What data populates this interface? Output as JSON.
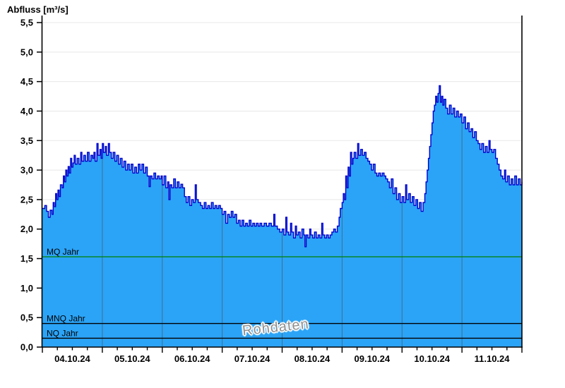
{
  "title": "Abfluss [m³/s]",
  "watermark": "Rohdaten",
  "colors": {
    "area_fill": "#2BA4F7",
    "series_line": "#0000CD",
    "h_grid": "#E8E8E8",
    "day_grid": "#3E6F8E",
    "axis": "#000000",
    "mq_line": "#008000",
    "ref_line": "#000000",
    "label_text": "#000000"
  },
  "chart_data": {
    "type": "area",
    "title": "Abfluss [m³/s]",
    "xlabel": "",
    "ylabel": "Abfluss [m³/s]",
    "x_unit": "days since 04.10.24 00:00",
    "xlim": [
      0,
      8
    ],
    "ylim": [
      0,
      5.5
    ],
    "y_tick_step": 0.5,
    "y_tick_labels": [
      "0,0",
      "0,5",
      "1,0",
      "1,5",
      "2,0",
      "2,5",
      "3,0",
      "3,5",
      "4,0",
      "4,5",
      "5,0",
      "5,5"
    ],
    "x_day_labels": [
      "04.10.24",
      "05.10.24",
      "06.10.24",
      "07.10.24",
      "08.10.24",
      "09.10.24",
      "10.10.24",
      "11.10.24"
    ],
    "x_minor_tick_step": 0.25,
    "grid": "horizontal-light, vertical-day-lines-inside-fill",
    "legend": "none",
    "reference_lines": [
      {
        "label": "MQ Jahr",
        "value": 1.53,
        "color": "#008000"
      },
      {
        "label": "MNQ Jahr",
        "value": 0.4,
        "color": "#000000"
      },
      {
        "label": "NQ Jahr",
        "value": 0.15,
        "color": "#000000"
      }
    ],
    "series": [
      {
        "name": "Rohdaten",
        "interpolation": "step-after",
        "points": [
          [
            0,
            2.35
          ],
          [
            0.04,
            2.4
          ],
          [
            0.07,
            2.3
          ],
          [
            0.1,
            2.2
          ],
          [
            0.13,
            2.32
          ],
          [
            0.16,
            2.25
          ],
          [
            0.18,
            2.45
          ],
          [
            0.2,
            2.38
          ],
          [
            0.22,
            2.6
          ],
          [
            0.24,
            2.5
          ],
          [
            0.26,
            2.66
          ],
          [
            0.28,
            2.55
          ],
          [
            0.3,
            2.75
          ],
          [
            0.33,
            2.7
          ],
          [
            0.35,
            2.9
          ],
          [
            0.37,
            2.8
          ],
          [
            0.39,
            3.0
          ],
          [
            0.41,
            2.9
          ],
          [
            0.43,
            3.06
          ],
          [
            0.45,
            2.95
          ],
          [
            0.47,
            3.2
          ],
          [
            0.49,
            3.05
          ],
          [
            0.51,
            3.12
          ],
          [
            0.53,
            3.25
          ],
          [
            0.55,
            3.1
          ],
          [
            0.58,
            3.2
          ],
          [
            0.61,
            3.1
          ],
          [
            0.64,
            3.3
          ],
          [
            0.66,
            3.15
          ],
          [
            0.69,
            3.25
          ],
          [
            0.72,
            3.15
          ],
          [
            0.75,
            3.3
          ],
          [
            0.78,
            3.15
          ],
          [
            0.81,
            3.25
          ],
          [
            0.84,
            3.2
          ],
          [
            0.86,
            3.3
          ],
          [
            0.88,
            3.15
          ],
          [
            0.91,
            3.45
          ],
          [
            0.93,
            3.25
          ],
          [
            0.96,
            3.35
          ],
          [
            0.98,
            3.2
          ],
          [
            1.0,
            3.45
          ],
          [
            1.02,
            3.3
          ],
          [
            1.05,
            3.4
          ],
          [
            1.07,
            3.25
          ],
          [
            1.1,
            3.45
          ],
          [
            1.12,
            3.3
          ],
          [
            1.15,
            3.2
          ],
          [
            1.18,
            3.3
          ],
          [
            1.21,
            3.15
          ],
          [
            1.24,
            3.25
          ],
          [
            1.27,
            3.1
          ],
          [
            1.3,
            3.2
          ],
          [
            1.33,
            3.05
          ],
          [
            1.36,
            3.15
          ],
          [
            1.39,
            3.0
          ],
          [
            1.42,
            3.1
          ],
          [
            1.45,
            3.0
          ],
          [
            1.48,
            3.1
          ],
          [
            1.51,
            2.95
          ],
          [
            1.54,
            3.05
          ],
          [
            1.57,
            2.95
          ],
          [
            1.6,
            3.1
          ],
          [
            1.63,
            3.0
          ],
          [
            1.66,
            3.1
          ],
          [
            1.69,
            2.95
          ],
          [
            1.72,
            3.05
          ],
          [
            1.75,
            2.9
          ],
          [
            1.78,
            2.72
          ],
          [
            1.8,
            2.9
          ],
          [
            1.83,
            2.85
          ],
          [
            1.86,
            2.95
          ],
          [
            1.89,
            2.85
          ],
          [
            1.92,
            2.9
          ],
          [
            1.95,
            2.85
          ],
          [
            1.98,
            2.9
          ],
          [
            2.0,
            2.75
          ],
          [
            2.03,
            2.9
          ],
          [
            2.06,
            2.7
          ],
          [
            2.09,
            2.8
          ],
          [
            2.11,
            2.5
          ],
          [
            2.13,
            2.75
          ],
          [
            2.16,
            2.7
          ],
          [
            2.19,
            2.85
          ],
          [
            2.22,
            2.7
          ],
          [
            2.25,
            2.8
          ],
          [
            2.28,
            2.7
          ],
          [
            2.31,
            2.76
          ],
          [
            2.34,
            2.7
          ],
          [
            2.37,
            2.55
          ],
          [
            2.4,
            2.45
          ],
          [
            2.43,
            2.55
          ],
          [
            2.46,
            2.4
          ],
          [
            2.49,
            2.5
          ],
          [
            2.52,
            2.45
          ],
          [
            2.55,
            2.75
          ],
          [
            2.57,
            2.5
          ],
          [
            2.6,
            2.45
          ],
          [
            2.64,
            2.4
          ],
          [
            2.67,
            2.35
          ],
          [
            2.7,
            2.45
          ],
          [
            2.73,
            2.35
          ],
          [
            2.76,
            2.4
          ],
          [
            2.79,
            2.35
          ],
          [
            2.82,
            2.45
          ],
          [
            2.85,
            2.35
          ],
          [
            2.88,
            2.4
          ],
          [
            2.91,
            2.35
          ],
          [
            2.94,
            2.4
          ],
          [
            2.97,
            2.35
          ],
          [
            3.0,
            2.25
          ],
          [
            3.03,
            2.3
          ],
          [
            3.06,
            2.1
          ],
          [
            3.09,
            2.25
          ],
          [
            3.12,
            2.2
          ],
          [
            3.15,
            2.3
          ],
          [
            3.18,
            2.2
          ],
          [
            3.21,
            2.25
          ],
          [
            3.24,
            2.1
          ],
          [
            3.27,
            2.15
          ],
          [
            3.3,
            2.05
          ],
          [
            3.33,
            2.15
          ],
          [
            3.36,
            2.05
          ],
          [
            3.39,
            2.1
          ],
          [
            3.42,
            2.05
          ],
          [
            3.45,
            2.15
          ],
          [
            3.48,
            2.05
          ],
          [
            3.51,
            2.1
          ],
          [
            3.54,
            2.05
          ],
          [
            3.57,
            2.1
          ],
          [
            3.6,
            2.05
          ],
          [
            3.63,
            2.1
          ],
          [
            3.66,
            2.05
          ],
          [
            3.7,
            2.1
          ],
          [
            3.74,
            2.05
          ],
          [
            3.78,
            2.1
          ],
          [
            3.82,
            2.05
          ],
          [
            3.86,
            2.25
          ],
          [
            3.88,
            2.05
          ],
          [
            3.92,
            2.0
          ],
          [
            3.96,
            1.95
          ],
          [
            4.0,
            2.0
          ],
          [
            4.03,
            1.9
          ],
          [
            4.06,
            2.2
          ],
          [
            4.08,
            1.95
          ],
          [
            4.11,
            1.9
          ],
          [
            4.14,
            2.1
          ],
          [
            4.16,
            1.95
          ],
          [
            4.19,
            1.85
          ],
          [
            4.22,
            2.05
          ],
          [
            4.24,
            1.9
          ],
          [
            4.27,
            1.95
          ],
          [
            4.3,
            1.85
          ],
          [
            4.33,
            2.0
          ],
          [
            4.36,
            1.9
          ],
          [
            4.38,
            1.7
          ],
          [
            4.4,
            1.9
          ],
          [
            4.43,
            1.85
          ],
          [
            4.46,
            2.0
          ],
          [
            4.48,
            1.9
          ],
          [
            4.51,
            1.85
          ],
          [
            4.54,
            1.95
          ],
          [
            4.57,
            1.85
          ],
          [
            4.6,
            1.9
          ],
          [
            4.63,
            1.85
          ],
          [
            4.66,
            2.1
          ],
          [
            4.68,
            1.9
          ],
          [
            4.71,
            1.85
          ],
          [
            4.74,
            1.9
          ],
          [
            4.77,
            1.85
          ],
          [
            4.8,
            1.9
          ],
          [
            4.83,
            1.95
          ],
          [
            4.86,
            2.0
          ],
          [
            4.89,
            1.95
          ],
          [
            4.92,
            2.05
          ],
          [
            4.95,
            2.2
          ],
          [
            4.97,
            2.35
          ],
          [
            5.0,
            2.45
          ],
          [
            5.02,
            2.6
          ],
          [
            5.04,
            2.5
          ],
          [
            5.06,
            2.9
          ],
          [
            5.08,
            2.7
          ],
          [
            5.1,
            3.05
          ],
          [
            5.12,
            2.9
          ],
          [
            5.14,
            3.3
          ],
          [
            5.16,
            3.1
          ],
          [
            5.18,
            3.2
          ],
          [
            5.2,
            3.3
          ],
          [
            5.23,
            3.2
          ],
          [
            5.26,
            3.45
          ],
          [
            5.28,
            3.25
          ],
          [
            5.31,
            3.35
          ],
          [
            5.34,
            3.25
          ],
          [
            5.37,
            3.3
          ],
          [
            5.4,
            3.2
          ],
          [
            5.43,
            3.15
          ],
          [
            5.46,
            3.1
          ],
          [
            5.49,
            3.0
          ],
          [
            5.52,
            3.1
          ],
          [
            5.55,
            2.95
          ],
          [
            5.58,
            2.9
          ],
          [
            5.61,
            2.95
          ],
          [
            5.64,
            2.9
          ],
          [
            5.67,
            2.95
          ],
          [
            5.7,
            2.9
          ],
          [
            5.73,
            2.85
          ],
          [
            5.76,
            2.8
          ],
          [
            5.79,
            2.7
          ],
          [
            5.82,
            2.85
          ],
          [
            5.85,
            2.6
          ],
          [
            5.88,
            2.7
          ],
          [
            5.91,
            2.5
          ],
          [
            5.94,
            2.6
          ],
          [
            5.97,
            2.45
          ],
          [
            6.0,
            2.55
          ],
          [
            6.03,
            2.45
          ],
          [
            6.06,
            2.75
          ],
          [
            6.08,
            2.5
          ],
          [
            6.11,
            2.6
          ],
          [
            6.14,
            2.45
          ],
          [
            6.17,
            2.55
          ],
          [
            6.2,
            2.4
          ],
          [
            6.23,
            2.5
          ],
          [
            6.26,
            2.35
          ],
          [
            6.29,
            2.45
          ],
          [
            6.32,
            2.3
          ],
          [
            6.35,
            2.45
          ],
          [
            6.38,
            2.6
          ],
          [
            6.4,
            2.8
          ],
          [
            6.42,
            3.0
          ],
          [
            6.44,
            3.2
          ],
          [
            6.46,
            3.4
          ],
          [
            6.48,
            3.6
          ],
          [
            6.5,
            3.8
          ],
          [
            6.52,
            4.0
          ],
          [
            6.54,
            4.1
          ],
          [
            6.56,
            4.25
          ],
          [
            6.58,
            4.15
          ],
          [
            6.6,
            4.3
          ],
          [
            6.62,
            4.43
          ],
          [
            6.64,
            4.15
          ],
          [
            6.66,
            4.25
          ],
          [
            6.68,
            4.1
          ],
          [
            6.7,
            4.2
          ],
          [
            6.73,
            4.05
          ],
          [
            6.76,
            3.95
          ],
          [
            6.79,
            4.1
          ],
          [
            6.82,
            3.95
          ],
          [
            6.85,
            4.05
          ],
          [
            6.88,
            3.9
          ],
          [
            6.91,
            4.0
          ],
          [
            6.94,
            3.9
          ],
          [
            6.97,
            3.95
          ],
          [
            7.0,
            3.8
          ],
          [
            7.03,
            3.9
          ],
          [
            7.06,
            3.7
          ],
          [
            7.09,
            3.8
          ],
          [
            7.12,
            3.65
          ],
          [
            7.15,
            3.7
          ],
          [
            7.18,
            3.55
          ],
          [
            7.21,
            3.65
          ],
          [
            7.24,
            3.5
          ],
          [
            7.27,
            3.45
          ],
          [
            7.3,
            3.35
          ],
          [
            7.33,
            3.45
          ],
          [
            7.36,
            3.3
          ],
          [
            7.39,
            3.4
          ],
          [
            7.42,
            3.3
          ],
          [
            7.45,
            3.5
          ],
          [
            7.47,
            3.35
          ],
          [
            7.5,
            3.3
          ],
          [
            7.53,
            3.35
          ],
          [
            7.56,
            3.2
          ],
          [
            7.59,
            3.1
          ],
          [
            7.62,
            3.0
          ],
          [
            7.65,
            2.9
          ],
          [
            7.68,
            2.85
          ],
          [
            7.71,
            3.0
          ],
          [
            7.73,
            2.8
          ],
          [
            7.76,
            2.9
          ],
          [
            7.79,
            2.75
          ],
          [
            7.82,
            2.85
          ],
          [
            7.85,
            2.75
          ],
          [
            7.88,
            2.9
          ],
          [
            7.91,
            2.75
          ],
          [
            7.94,
            2.85
          ],
          [
            7.97,
            2.75
          ],
          [
            8.0,
            2.8
          ]
        ]
      }
    ]
  }
}
